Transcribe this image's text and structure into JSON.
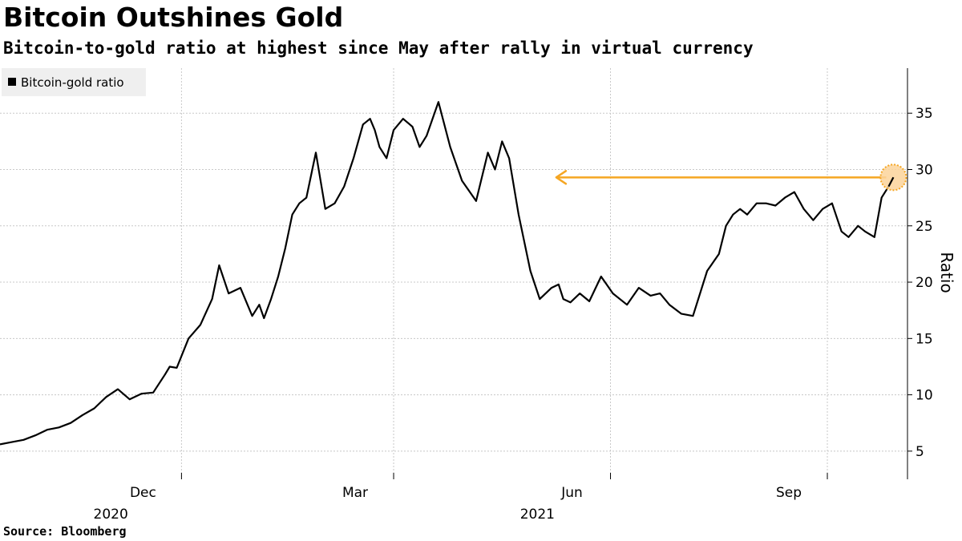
{
  "header": {
    "title": "Bitcoin Outshines Gold",
    "subtitle": "Bitcoin-to-gold ratio at highest since May after rally in virtual currency"
  },
  "footer": {
    "source": "Source: Bloomberg"
  },
  "colors": {
    "line": "#000000",
    "highlight": "#f5a623",
    "highlight_fill": "#fbd49a",
    "grid": "#c8c8c8",
    "legend_bg": "#efefef"
  },
  "chart_data": {
    "type": "line",
    "ylabel": "Ratio",
    "ylim": [
      2.5,
      39
    ],
    "xlim": [
      "2020-09-15",
      "2021-10-05"
    ],
    "y_ticks": [
      5,
      10,
      15,
      20,
      25,
      30,
      35
    ],
    "x_ticks": [
      {
        "label": "Dec",
        "date": "2020-12-01"
      },
      {
        "label": "Mar",
        "date": "2021-03-01"
      },
      {
        "label": "Jun",
        "date": "2021-06-01"
      },
      {
        "label": "Sep",
        "date": "2021-09-01"
      }
    ],
    "year_labels": [
      {
        "label": "2020",
        "date": "2020-11-01"
      },
      {
        "label": "2021",
        "date": "2021-05-01"
      }
    ],
    "grid": true,
    "y_axis_position": "right",
    "legend": {
      "position": "top-left",
      "entries": [
        "Bitcoin-gold ratio"
      ]
    },
    "series": [
      {
        "name": "Bitcoin-gold ratio",
        "x": [
          "2020-09-15",
          "2020-09-20",
          "2020-09-25",
          "2020-09-30",
          "2020-10-05",
          "2020-10-10",
          "2020-10-15",
          "2020-10-20",
          "2020-10-25",
          "2020-10-30",
          "2020-11-04",
          "2020-11-09",
          "2020-11-14",
          "2020-11-19",
          "2020-11-24",
          "2020-11-26",
          "2020-11-29",
          "2020-12-04",
          "2020-12-09",
          "2020-12-14",
          "2020-12-17",
          "2020-12-21",
          "2020-12-26",
          "2020-12-31",
          "2021-01-03",
          "2021-01-05",
          "2021-01-08",
          "2021-01-11",
          "2021-01-14",
          "2021-01-17",
          "2021-01-20",
          "2021-01-23",
          "2021-01-27",
          "2021-01-31",
          "2021-02-04",
          "2021-02-08",
          "2021-02-12",
          "2021-02-16",
          "2021-02-19",
          "2021-02-21",
          "2021-02-23",
          "2021-02-26",
          "2021-03-01",
          "2021-03-05",
          "2021-03-09",
          "2021-03-12",
          "2021-03-15",
          "2021-03-20",
          "2021-03-25",
          "2021-03-30",
          "2021-04-05",
          "2021-04-10",
          "2021-04-13",
          "2021-04-16",
          "2021-04-19",
          "2021-04-23",
          "2021-04-28",
          "2021-05-02",
          "2021-05-07",
          "2021-05-10",
          "2021-05-12",
          "2021-05-15",
          "2021-05-19",
          "2021-05-23",
          "2021-05-28",
          "2021-06-02",
          "2021-06-08",
          "2021-06-13",
          "2021-06-18",
          "2021-06-22",
          "2021-06-26",
          "2021-07-01",
          "2021-07-06",
          "2021-07-12",
          "2021-07-17",
          "2021-07-20",
          "2021-07-23",
          "2021-07-26",
          "2021-07-29",
          "2021-08-02",
          "2021-08-06",
          "2021-08-10",
          "2021-08-14",
          "2021-08-18",
          "2021-08-22",
          "2021-08-26",
          "2021-08-30",
          "2021-09-03",
          "2021-09-07",
          "2021-09-10",
          "2021-09-14",
          "2021-09-17",
          "2021-09-21",
          "2021-09-24",
          "2021-09-27",
          "2021-09-29"
        ],
        "y": [
          5.6,
          5.8,
          6.0,
          6.4,
          6.9,
          7.1,
          7.5,
          8.2,
          8.8,
          9.8,
          10.5,
          9.6,
          10.1,
          10.2,
          11.8,
          12.5,
          12.4,
          15.0,
          16.2,
          18.5,
          21.5,
          19.0,
          19.5,
          17.0,
          18.0,
          16.8,
          18.5,
          20.5,
          23.0,
          26.0,
          27.0,
          27.5,
          31.5,
          26.5,
          27.0,
          28.5,
          31.0,
          34.0,
          34.5,
          33.5,
          32.0,
          31.0,
          33.5,
          34.5,
          33.8,
          32.0,
          33.0,
          36.0,
          32.0,
          29.0,
          27.2,
          31.5,
          30.0,
          32.5,
          31.0,
          26.0,
          21.0,
          18.5,
          19.5,
          19.8,
          18.5,
          18.2,
          19.0,
          18.3,
          20.5,
          19.0,
          18.0,
          19.5,
          18.8,
          19.0,
          18.0,
          17.2,
          17.0,
          21.0,
          22.5,
          25.0,
          26.0,
          26.5,
          26.0,
          27.0,
          27.0,
          26.8,
          27.5,
          28.0,
          26.5,
          25.5,
          26.5,
          27.0,
          24.5,
          24.0,
          25.0,
          24.5,
          24.0,
          27.5,
          28.5,
          29.3
        ]
      }
    ],
    "annotations": [
      {
        "type": "arrow",
        "from": {
          "date": "2021-09-26",
          "value": 29.3
        },
        "to": {
          "date": "2021-05-09",
          "value": 29.3
        }
      },
      {
        "type": "circle-marker",
        "date": "2021-09-29",
        "value": 29.3
      }
    ]
  }
}
